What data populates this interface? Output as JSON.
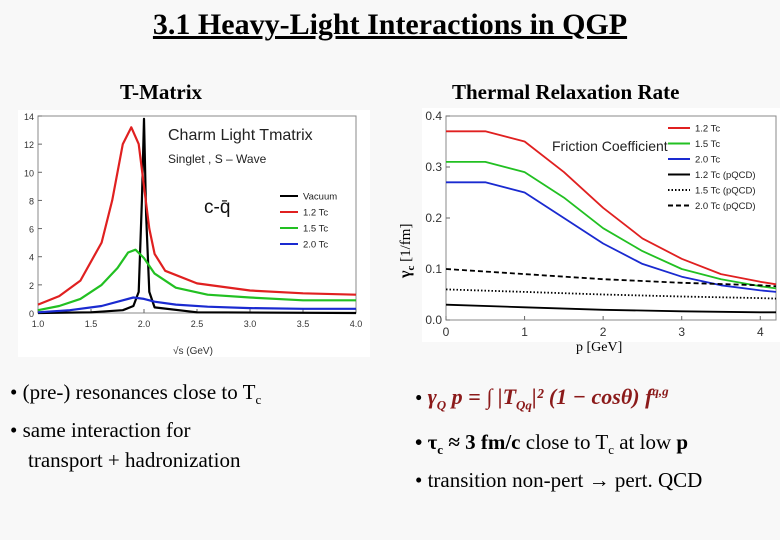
{
  "slide": {
    "title": "3.1 Heavy-Light Interactions in QGP",
    "left_heading": "T-Matrix",
    "right_heading": "Thermal Relaxation Rate"
  },
  "left_bullets": {
    "b1_prefix": "• (pre-) resonances close to T",
    "b1_sub": "c",
    "b2_line1": "• same interaction for",
    "b2_line2": "transport + hadronization"
  },
  "right_bullets": {
    "b1_bullet": "•",
    "formula_gamma": "γ",
    "formula_gamma_sub": "Q",
    "formula_mid": " p = ∫ |T",
    "formula_T_sub": "Qq",
    "formula_end": "|² (1 − cosθ) f",
    "formula_f_sup": "q,g",
    "b2_prefix": "• τ",
    "b2_sub": "c",
    "b2_mid": " ≈ 3 fm/c",
    "b2_rest": " close to T",
    "b2_rest_sub": "c",
    "b2_tail": " at low ",
    "b2_p": "p",
    "b3": "•  transition non-pert → pert. QCD"
  },
  "chart_data": [
    {
      "type": "line",
      "title": "Charm Light Tmatrix",
      "subtitle": "Singlet , S – Wave",
      "annotation": "c-q̄",
      "xlabel": "√s (GeV)",
      "ylabel": "",
      "xlim": [
        1.0,
        4.0
      ],
      "ylim": [
        0,
        14
      ],
      "xticks": [
        "1.0",
        "1.5",
        "2.0",
        "2.5",
        "3.0",
        "3.5",
        "4.0"
      ],
      "yticks": [
        "0",
        "2",
        "4",
        "6",
        "8",
        "10",
        "12",
        "14"
      ],
      "legend": "right",
      "series": [
        {
          "name": "Vacuum",
          "color": "#000000",
          "dash": "solid",
          "x": [
            1.0,
            1.5,
            1.8,
            1.9,
            1.95,
            1.98,
            2.0,
            2.02,
            2.05,
            2.1,
            2.5,
            4.0
          ],
          "y": [
            0.0,
            0.05,
            0.2,
            0.5,
            1.5,
            8.0,
            13.8,
            7.0,
            1.5,
            0.4,
            0.05,
            0.0
          ]
        },
        {
          "name": "1.2 Tc",
          "color": "#e02020",
          "dash": "solid",
          "x": [
            1.0,
            1.2,
            1.4,
            1.6,
            1.7,
            1.8,
            1.88,
            1.95,
            2.0,
            2.05,
            2.1,
            2.2,
            2.5,
            3.0,
            3.5,
            4.0
          ],
          "y": [
            0.6,
            1.2,
            2.3,
            5.0,
            8.0,
            12.0,
            13.2,
            12.0,
            9.0,
            6.0,
            4.2,
            3.0,
            2.1,
            1.6,
            1.4,
            1.3
          ]
        },
        {
          "name": "1.5 Tc",
          "color": "#22c022",
          "dash": "solid",
          "x": [
            1.0,
            1.2,
            1.4,
            1.6,
            1.75,
            1.85,
            1.92,
            2.0,
            2.1,
            2.3,
            2.6,
            3.0,
            3.5,
            4.0
          ],
          "y": [
            0.2,
            0.5,
            1.0,
            2.0,
            3.2,
            4.3,
            4.5,
            3.9,
            2.8,
            1.8,
            1.3,
            1.1,
            0.9,
            0.9
          ]
        },
        {
          "name": "2.0 Tc",
          "color": "#1a2ad0",
          "dash": "solid",
          "x": [
            1.0,
            1.3,
            1.6,
            1.8,
            1.9,
            2.0,
            2.1,
            2.3,
            2.6,
            3.0,
            3.5,
            4.0
          ],
          "y": [
            0.05,
            0.2,
            0.5,
            0.9,
            1.1,
            1.0,
            0.8,
            0.6,
            0.45,
            0.35,
            0.3,
            0.3
          ]
        }
      ]
    },
    {
      "type": "line",
      "title": "Friction Coefficient",
      "xlabel": "p [GeV]",
      "ylabel": "γc [1/fm]",
      "ylabel_main": "γ",
      "ylabel_sub": "c",
      "ylabel_unit": " [1/fm]",
      "xlim": [
        0,
        4.2
      ],
      "ylim": [
        0,
        0.4
      ],
      "xticks": [
        "0",
        "1",
        "2",
        "3",
        "4"
      ],
      "yticks": [
        "0.0",
        "0.1",
        "0.2",
        "0.3",
        "0.4"
      ],
      "legend": "top-right",
      "series": [
        {
          "name": "1.2 Tc",
          "color": "#e02020",
          "dash": "solid",
          "x": [
            0,
            0.5,
            1.0,
            1.5,
            2.0,
            2.5,
            3.0,
            3.5,
            4.0,
            4.2
          ],
          "y": [
            0.37,
            0.37,
            0.35,
            0.29,
            0.22,
            0.16,
            0.12,
            0.09,
            0.075,
            0.07
          ]
        },
        {
          "name": "1.5 Tc",
          "color": "#22c022",
          "dash": "solid",
          "x": [
            0,
            0.5,
            1.0,
            1.5,
            2.0,
            2.5,
            3.0,
            3.5,
            4.0,
            4.2
          ],
          "y": [
            0.31,
            0.31,
            0.29,
            0.24,
            0.18,
            0.135,
            0.1,
            0.08,
            0.066,
            0.062
          ]
        },
        {
          "name": "2.0 Tc",
          "color": "#1a2ad0",
          "dash": "solid",
          "x": [
            0,
            0.5,
            1.0,
            1.5,
            2.0,
            2.5,
            3.0,
            3.5,
            4.0,
            4.2
          ],
          "y": [
            0.27,
            0.27,
            0.25,
            0.2,
            0.15,
            0.11,
            0.085,
            0.068,
            0.058,
            0.055
          ]
        },
        {
          "name": "1.2 Tc (pQCD)",
          "color": "#000000",
          "dash": "solid",
          "x": [
            0,
            1,
            2,
            3,
            4,
            4.2
          ],
          "y": [
            0.03,
            0.025,
            0.02,
            0.017,
            0.015,
            0.015
          ]
        },
        {
          "name": "1.5 Tc (pQCD)",
          "color": "#000000",
          "dash": "dotted",
          "x": [
            0,
            1,
            2,
            3,
            4,
            4.2
          ],
          "y": [
            0.06,
            0.055,
            0.05,
            0.046,
            0.043,
            0.042
          ]
        },
        {
          "name": "2.0 Tc (pQCD)",
          "color": "#000000",
          "dash": "dashed",
          "x": [
            0,
            1,
            2,
            3,
            4,
            4.2
          ],
          "y": [
            0.1,
            0.09,
            0.08,
            0.073,
            0.068,
            0.066
          ]
        }
      ]
    }
  ]
}
